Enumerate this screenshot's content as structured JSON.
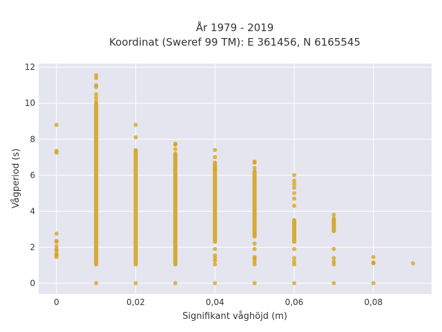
{
  "chart_data": {
    "type": "scatter",
    "title": "År 1979 - 2019",
    "subtitle": "Koordinat (Sweref 99 TM): E 361456, N 6165545",
    "xlabel": "Signifikant våghöjd (m)",
    "ylabel": "Vågperiod (s)",
    "xlim": [
      -0.0045,
      0.0947
    ],
    "ylim": [
      -0.6,
      12.2
    ],
    "x_ticks": [
      0,
      0.02,
      0.04,
      0.06,
      0.08
    ],
    "x_tick_labels": [
      "0",
      "0,02",
      "0,04",
      "0,06",
      "0,08"
    ],
    "y_ticks": [
      0,
      2,
      4,
      6,
      8,
      10,
      12
    ],
    "y_tick_labels": [
      "0",
      "2",
      "4",
      "6",
      "8",
      "10",
      "12"
    ],
    "grid": true,
    "colors": {
      "marker": "#d4a017",
      "plot_background": "#e5e5ef",
      "grid": "#ffffff"
    },
    "series": [
      {
        "columns": [
          {
            "x": 0.0,
            "ranges": [],
            "points": [
              1.45,
              1.55,
              1.65,
              1.8,
              1.9,
              2.05,
              2.3,
              2.35,
              2.75,
              7.25,
              7.35,
              8.8
            ]
          },
          {
            "x": 0.01,
            "ranges": [
              [
                1.05,
                9.95
              ]
            ],
            "points": [
              0.0,
              10.1,
              10.3,
              10.5,
              10.9,
              11.0,
              11.4,
              11.55
            ]
          },
          {
            "x": 0.02,
            "ranges": [
              [
                1.05,
                7.3
              ]
            ],
            "points": [
              0.0,
              7.4,
              8.1,
              8.8
            ]
          },
          {
            "x": 0.03,
            "ranges": [
              [
                1.05,
                7.2
              ]
            ],
            "points": [
              0.0,
              7.45,
              7.7,
              7.75
            ]
          },
          {
            "x": 0.04,
            "ranges": [
              [
                2.3,
                6.7
              ]
            ],
            "points": [
              0.0,
              1.05,
              1.25,
              1.4,
              1.55,
              1.9,
              6.3,
              7.0,
              7.4
            ]
          },
          {
            "x": 0.05,
            "ranges": [
              [
                2.6,
                6.2
              ]
            ],
            "points": [
              0.0,
              1.05,
              1.2,
              1.35,
              1.45,
              1.9,
              2.2,
              6.4,
              6.7,
              6.75
            ]
          },
          {
            "x": 0.06,
            "ranges": [
              [
                2.3,
                3.5
              ]
            ],
            "points": [
              0.0,
              1.05,
              1.2,
              1.4,
              1.9,
              4.3,
              4.7,
              5.0,
              5.3,
              5.5,
              5.7,
              6.0
            ]
          },
          {
            "x": 0.07,
            "ranges": [
              [
                2.9,
                3.5
              ]
            ],
            "points": [
              0.0,
              1.05,
              1.2,
              1.4,
              1.9,
              3.6,
              3.8
            ]
          },
          {
            "x": 0.08,
            "ranges": [],
            "points": [
              0.0,
              1.1,
              1.15,
              1.45
            ]
          },
          {
            "x": 0.09,
            "ranges": [],
            "points": [
              1.1
            ]
          }
        ]
      }
    ]
  }
}
